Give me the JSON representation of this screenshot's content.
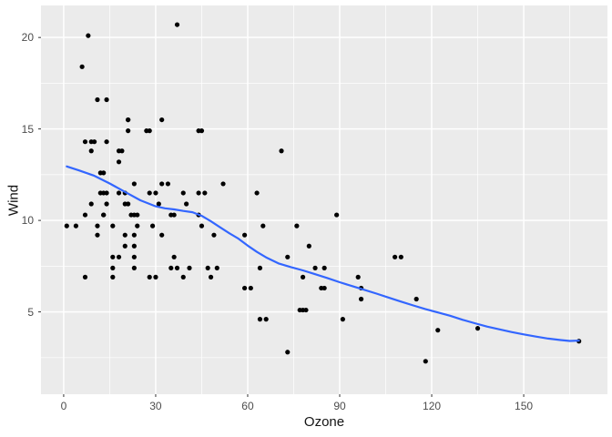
{
  "figure": {
    "background": "#FFFFFF",
    "panel_background": "#EBEBEB",
    "grid_color": "#FFFFFF",
    "point_color": "#000000",
    "axis_text_color": "#4D4D4D",
    "axis_title_color": "#141414",
    "tick_mark_color": "#333333"
  },
  "chart_data": {
    "type": "scatter",
    "title": "",
    "xlabel": "Ozone",
    "ylabel": "Wind",
    "legend": "none",
    "grid": "on",
    "xlim": [
      -7.4,
      177.3
    ],
    "ylim": [
      0.5,
      21.75
    ],
    "x_ticks": [
      0,
      30,
      60,
      90,
      120,
      150
    ],
    "y_ticks": [
      5,
      10,
      15,
      20
    ],
    "x_minor_ticks": [
      15,
      45,
      75,
      105,
      135,
      165
    ],
    "y_minor_ticks": [
      2.5,
      7.5,
      12.5,
      17.5
    ],
    "points": [
      [
        41,
        7.4
      ],
      [
        36,
        8
      ],
      [
        12,
        12.6
      ],
      [
        18,
        11.5
      ],
      [
        28,
        14.9
      ],
      [
        23,
        8.6
      ],
      [
        19,
        13.8
      ],
      [
        8,
        20.1
      ],
      [
        7,
        6.9
      ],
      [
        16,
        9.7
      ],
      [
        11,
        9.2
      ],
      [
        14,
        10.9
      ],
      [
        18,
        13.2
      ],
      [
        14,
        11.5
      ],
      [
        34,
        12
      ],
      [
        6,
        18.4
      ],
      [
        30,
        11.5
      ],
      [
        11,
        9.7
      ],
      [
        1,
        9.7
      ],
      [
        11,
        16.6
      ],
      [
        4,
        9.7
      ],
      [
        32,
        12
      ],
      [
        23,
        12
      ],
      [
        45,
        14.9
      ],
      [
        115,
        5.7
      ],
      [
        37,
        7.4
      ],
      [
        29,
        9.7
      ],
      [
        71,
        13.8
      ],
      [
        39,
        11.5
      ],
      [
        23,
        8
      ],
      [
        21,
        14.9
      ],
      [
        37,
        20.7
      ],
      [
        20,
        9.2
      ],
      [
        12,
        11.5
      ],
      [
        13,
        10.3
      ],
      [
        135,
        4.1
      ],
      [
        49,
        9.2
      ],
      [
        32,
        9.2
      ],
      [
        64,
        4.6
      ],
      [
        40,
        10.9
      ],
      [
        77,
        5.1
      ],
      [
        97,
        6.3
      ],
      [
        97,
        5.7
      ],
      [
        85,
        7.4
      ],
      [
        10,
        14.3
      ],
      [
        27,
        14.9
      ],
      [
        7,
        14.3
      ],
      [
        48,
        6.9
      ],
      [
        35,
        10.3
      ],
      [
        61,
        6.3
      ],
      [
        79,
        5.1
      ],
      [
        63,
        11.5
      ],
      [
        16,
        6.9
      ],
      [
        80,
        8.6
      ],
      [
        108,
        8
      ],
      [
        20,
        8.6
      ],
      [
        52,
        12
      ],
      [
        82,
        7.4
      ],
      [
        50,
        7.4
      ],
      [
        64,
        7.4
      ],
      [
        59,
        9.2
      ],
      [
        39,
        6.9
      ],
      [
        9,
        13.8
      ],
      [
        16,
        7.4
      ],
      [
        78,
        6.9
      ],
      [
        35,
        7.4
      ],
      [
        66,
        4.6
      ],
      [
        122,
        4
      ],
      [
        89,
        10.3
      ],
      [
        110,
        8
      ],
      [
        44,
        11.5
      ],
      [
        28,
        11.5
      ],
      [
        65,
        9.7
      ],
      [
        22,
        10.3
      ],
      [
        59,
        6.3
      ],
      [
        23,
        7.4
      ],
      [
        31,
        10.9
      ],
      [
        44,
        10.3
      ],
      [
        21,
        15.5
      ],
      [
        9,
        14.3
      ],
      [
        45,
        9.7
      ],
      [
        168,
        3.4
      ],
      [
        73,
        8
      ],
      [
        76,
        9.7
      ],
      [
        118,
        2.3
      ],
      [
        84,
        6.3
      ],
      [
        85,
        6.3
      ],
      [
        96,
        6.9
      ],
      [
        78,
        5.1
      ],
      [
        73,
        2.8
      ],
      [
        91,
        4.6
      ],
      [
        47,
        7.4
      ],
      [
        32,
        15.5
      ],
      [
        20,
        10.9
      ],
      [
        23,
        10.3
      ],
      [
        21,
        10.9
      ],
      [
        24,
        9.7
      ],
      [
        44,
        14.9
      ],
      [
        21,
        15.5
      ],
      [
        28,
        6.9
      ],
      [
        9,
        10.9
      ],
      [
        13,
        11.5
      ],
      [
        46,
        11.5
      ],
      [
        18,
        13.8
      ],
      [
        13,
        10.3
      ],
      [
        24,
        10.3
      ],
      [
        16,
        8
      ],
      [
        13,
        12.6
      ],
      [
        23,
        9.2
      ],
      [
        36,
        10.3
      ],
      [
        7,
        10.3
      ],
      [
        14,
        16.6
      ],
      [
        30,
        6.9
      ],
      [
        14,
        14.3
      ],
      [
        18,
        8
      ],
      [
        20,
        11.5
      ]
    ],
    "smooth_line": {
      "name": "loess-fit",
      "color": "#3366FF",
      "points": [
        [
          1,
          12.95
        ],
        [
          5,
          12.73
        ],
        [
          10,
          12.44
        ],
        [
          15,
          12.02
        ],
        [
          20,
          11.56
        ],
        [
          25,
          11.1
        ],
        [
          30,
          10.77
        ],
        [
          33,
          10.66
        ],
        [
          36,
          10.6
        ],
        [
          39,
          10.52
        ],
        [
          42,
          10.45
        ],
        [
          45,
          10.25
        ],
        [
          48,
          9.95
        ],
        [
          51,
          9.62
        ],
        [
          54,
          9.3
        ],
        [
          57,
          9.0
        ],
        [
          60,
          8.62
        ],
        [
          63,
          8.28
        ],
        [
          66,
          7.98
        ],
        [
          70,
          7.65
        ],
        [
          74,
          7.45
        ],
        [
          78,
          7.27
        ],
        [
          82,
          7.06
        ],
        [
          86,
          6.85
        ],
        [
          90,
          6.62
        ],
        [
          94,
          6.41
        ],
        [
          98,
          6.21
        ],
        [
          102,
          6.0
        ],
        [
          106,
          5.78
        ],
        [
          110,
          5.56
        ],
        [
          114,
          5.35
        ],
        [
          118,
          5.15
        ],
        [
          122,
          4.97
        ],
        [
          126,
          4.79
        ],
        [
          130,
          4.57
        ],
        [
          134,
          4.38
        ],
        [
          138,
          4.2
        ],
        [
          142,
          4.05
        ],
        [
          146,
          3.9
        ],
        [
          150,
          3.77
        ],
        [
          154,
          3.65
        ],
        [
          158,
          3.54
        ],
        [
          162,
          3.46
        ],
        [
          165,
          3.41
        ],
        [
          168,
          3.43
        ]
      ]
    }
  }
}
